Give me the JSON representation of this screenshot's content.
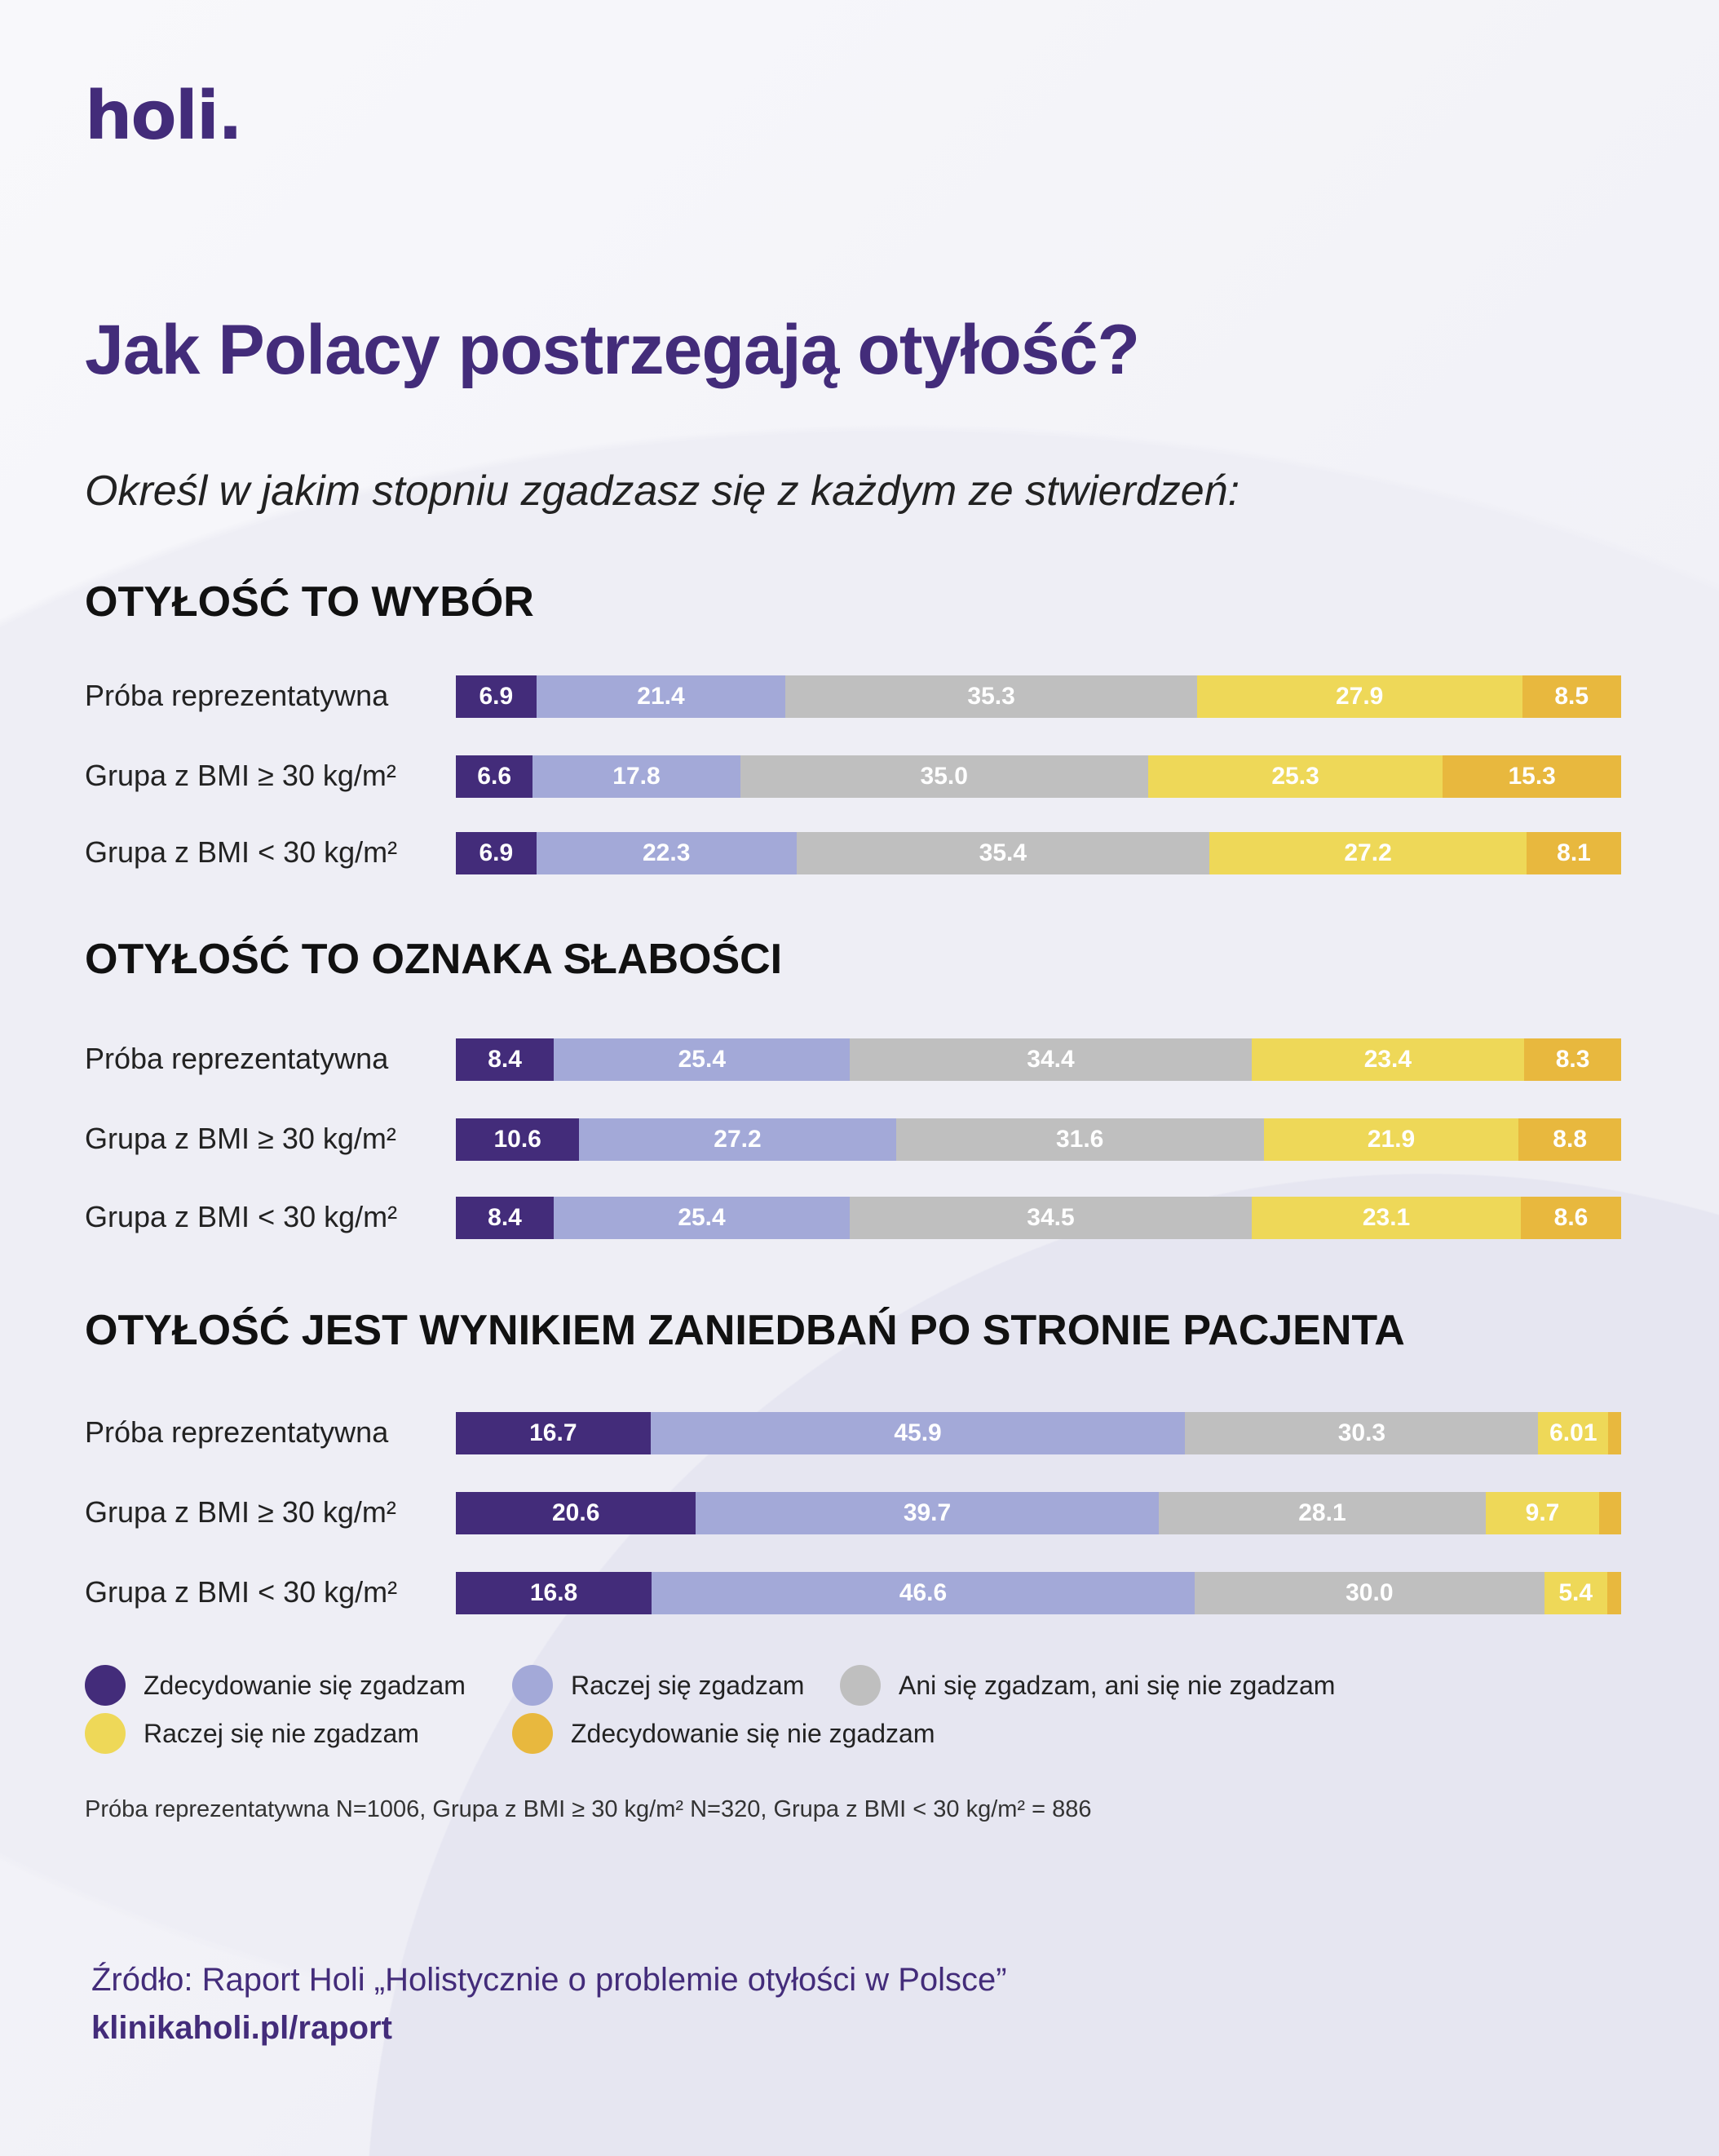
{
  "logo": "holi.",
  "title": "Jak Polacy postrzegają otyłość?",
  "subtitle": "Określ w jakim stopniu zgadzasz się z każdym ze stwierdzeń:",
  "colors": {
    "strongly_agree": "#432c7a",
    "agree": "#a3a9d8",
    "neutral": "#bfbfbf",
    "disagree": "#eed858",
    "strongly_disagree": "#e8b83e"
  },
  "chart_data": {
    "type": "bar",
    "orientation": "horizontal-stacked-100",
    "xlim": [
      0,
      100
    ],
    "legend": [
      {
        "key": "strongly_agree",
        "label": "Zdecydowanie się zgadzam"
      },
      {
        "key": "agree",
        "label": "Raczej się zgadzam"
      },
      {
        "key": "neutral",
        "label": "Ani się zgadzam, ani się nie zgadzam"
      },
      {
        "key": "disagree",
        "label": "Raczej się nie zgadzam"
      },
      {
        "key": "strongly_disagree",
        "label": "Zdecydowanie się nie zgadzam"
      }
    ],
    "legend_placement": "bottom",
    "groups": [
      {
        "title": "OTYŁOŚĆ TO WYBÓR",
        "rows": [
          {
            "label": "Próba reprezentatywna",
            "values": [
              6.9,
              21.4,
              35.3,
              27.9,
              8.5
            ],
            "labels": [
              "6.9",
              "21.4",
              "35.3",
              "27.9",
              "8.5"
            ]
          },
          {
            "label": "Grupa z BMI ≥ 30 kg/m²",
            "values": [
              6.6,
              17.8,
              35.0,
              25.3,
              15.3
            ],
            "labels": [
              "6.6",
              "17.8",
              "35.0",
              "25.3",
              "15.3"
            ]
          },
          {
            "label": "Grupa z BMI < 30 kg/m²",
            "values": [
              6.9,
              22.3,
              35.4,
              27.2,
              8.1
            ],
            "labels": [
              "6.9",
              "22.3",
              "35.4",
              "27.2",
              "8.1"
            ]
          }
        ]
      },
      {
        "title": "OTYŁOŚĆ TO OZNAKA SŁABOŚCI",
        "rows": [
          {
            "label": "Próba reprezentatywna",
            "values": [
              8.4,
              25.4,
              34.4,
              23.4,
              8.3
            ],
            "labels": [
              "8.4",
              "25.4",
              "34.4",
              "23.4",
              "8.3"
            ]
          },
          {
            "label": "Grupa z BMI ≥ 30 kg/m²",
            "values": [
              10.6,
              27.2,
              31.6,
              21.9,
              8.8
            ],
            "labels": [
              "10.6",
              "27.2",
              "31.6",
              "21.9",
              "8.8"
            ]
          },
          {
            "label": "Grupa z BMI < 30 kg/m²",
            "values": [
              8.4,
              25.4,
              34.5,
              23.1,
              8.6
            ],
            "labels": [
              "8.4",
              "25.4",
              "34.5",
              "23.1",
              "8.6"
            ]
          }
        ]
      },
      {
        "title": "OTYŁOŚĆ JEST WYNIKIEM ZANIEDBAŃ PO STRONIE PACJENTA",
        "rows": [
          {
            "label": "Próba reprezentatywna",
            "values": [
              16.7,
              45.9,
              30.3,
              6.01,
              1.1
            ],
            "labels": [
              "16.7",
              "45.9",
              "30.3",
              "6.01",
              ""
            ]
          },
          {
            "label": "Grupa z BMI ≥ 30 kg/m²",
            "values": [
              20.6,
              39.7,
              28.1,
              9.7,
              1.9
            ],
            "labels": [
              "20.6",
              "39.7",
              "28.1",
              "9.7",
              ""
            ]
          },
          {
            "label": "Grupa z BMI < 30 kg/m²",
            "values": [
              16.8,
              46.6,
              30.0,
              5.4,
              1.2
            ],
            "labels": [
              "16.8",
              "46.6",
              "30.0",
              "5.4",
              ""
            ]
          }
        ]
      }
    ]
  },
  "footnote": "Próba reprezentatywna N=1006, Grupa z BMI ≥ 30 kg/m² N=320, Grupa z BMI < 30 kg/m² = 886",
  "source": {
    "line1": "Źródło: Raport Holi „Holistycznie o problemie otyłości w Polsce”",
    "line2": "klinikaholi.pl/raport"
  }
}
